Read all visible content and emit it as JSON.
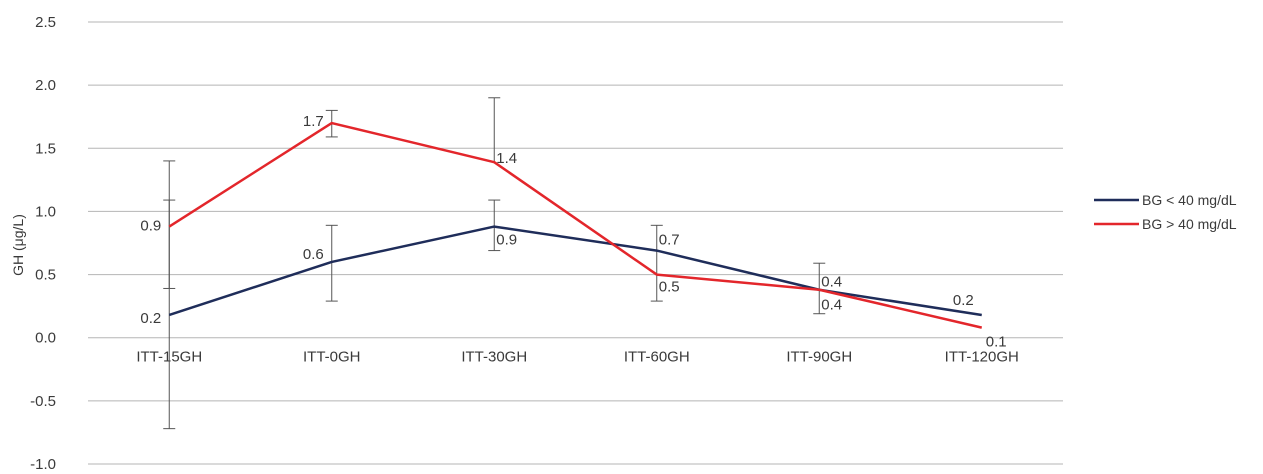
{
  "chart_data": {
    "type": "line",
    "title": "",
    "xlabel": "",
    "ylabel": "GH (μg/L)",
    "ylim": [
      -1.0,
      2.5
    ],
    "yticks": [
      "-1.0",
      "-0.5",
      "0.0",
      "0.5",
      "1.0",
      "1.5",
      "2.0",
      "2.5"
    ],
    "categories": [
      "ITT-15GH",
      "ITT-0GH",
      "ITT-30GH",
      "ITT-60GH",
      "ITT-90GH",
      "ITT-120GH"
    ],
    "grid": true,
    "legend_position": "right",
    "series": [
      {
        "name": "BG < 40 mg/dL",
        "color": "#1f2d5a",
        "values": [
          0.18,
          0.6,
          0.88,
          0.69,
          0.38,
          0.18
        ],
        "labels": [
          "0.2",
          "0.6",
          "0.9",
          "0.7",
          "0.4",
          "0.2"
        ],
        "error_low": [
          -0.72,
          0.29,
          0.69,
          0.29,
          0.19,
          null
        ],
        "error_high": [
          1.09,
          0.89,
          1.09,
          0.89,
          0.59,
          null
        ]
      },
      {
        "name": "BG > 40 mg/dL",
        "color": "#e3262b",
        "values": [
          0.88,
          1.7,
          1.39,
          0.5,
          0.38,
          0.08
        ],
        "labels": [
          "0.9",
          "1.7",
          "1.4",
          "0.5",
          "0.4",
          "0.1"
        ],
        "error_low": [
          0.39,
          1.59,
          null,
          null,
          null,
          null
        ],
        "error_high": [
          1.4,
          1.8,
          1.9,
          null,
          null,
          null
        ]
      }
    ]
  }
}
